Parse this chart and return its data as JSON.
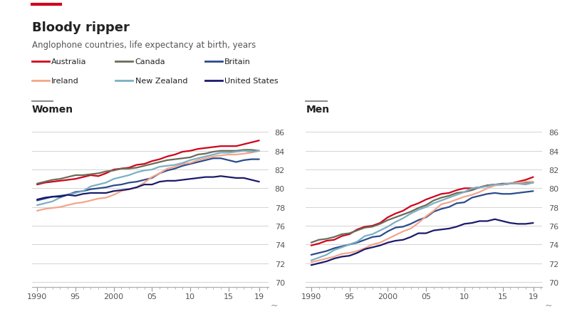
{
  "title": "Bloody ripper",
  "subtitle": "Anglophone countries, life expectancy at birth, years",
  "panel_labels": [
    "Women",
    "Men"
  ],
  "countries": [
    "Australia",
    "Canada",
    "Britain",
    "Ireland",
    "New Zealand",
    "United States"
  ],
  "colors": [
    "#D0021B",
    "#6B6B5A",
    "#2B4B8C",
    "#F4A58A",
    "#7BAFC4",
    "#1A1A6B"
  ],
  "years": [
    1990,
    1991,
    1992,
    1993,
    1994,
    1995,
    1996,
    1997,
    1998,
    1999,
    2000,
    2001,
    2002,
    2003,
    2004,
    2005,
    2006,
    2007,
    2008,
    2009,
    2010,
    2011,
    2012,
    2013,
    2014,
    2015,
    2016,
    2017,
    2018,
    2019
  ],
  "women": {
    "Australia": [
      80.4,
      80.6,
      80.7,
      80.8,
      80.9,
      81.0,
      81.2,
      81.4,
      81.3,
      81.6,
      82.0,
      82.1,
      82.2,
      82.5,
      82.6,
      82.9,
      83.1,
      83.4,
      83.6,
      83.9,
      84.0,
      84.2,
      84.3,
      84.4,
      84.5,
      84.5,
      84.5,
      84.7,
      84.9,
      85.1
    ],
    "Canada": [
      80.5,
      80.7,
      80.9,
      81.0,
      81.2,
      81.4,
      81.4,
      81.5,
      81.6,
      81.8,
      81.9,
      82.1,
      82.1,
      82.2,
      82.4,
      82.6,
      82.8,
      83.0,
      83.1,
      83.2,
      83.3,
      83.6,
      83.7,
      83.9,
      84.0,
      84.0,
      84.0,
      84.1,
      84.1,
      84.0
    ],
    "Britain": [
      78.7,
      78.9,
      79.1,
      79.2,
      79.3,
      79.6,
      79.7,
      79.9,
      80.0,
      80.1,
      80.3,
      80.4,
      80.6,
      80.7,
      80.9,
      81.1,
      81.6,
      81.9,
      82.1,
      82.4,
      82.6,
      82.8,
      83.0,
      83.2,
      83.2,
      83.0,
      82.8,
      83.0,
      83.1,
      83.1
    ],
    "Ireland": [
      77.6,
      77.8,
      77.9,
      78.0,
      78.2,
      78.4,
      78.5,
      78.7,
      78.9,
      79.0,
      79.3,
      79.7,
      79.9,
      80.1,
      80.6,
      81.2,
      81.6,
      82.1,
      82.3,
      82.6,
      82.7,
      83.0,
      83.2,
      83.4,
      83.5,
      83.6,
      83.6,
      83.7,
      83.8,
      84.0
    ],
    "New Zealand": [
      78.2,
      78.4,
      78.6,
      79.0,
      79.3,
      79.5,
      79.7,
      80.2,
      80.4,
      80.6,
      81.0,
      81.2,
      81.4,
      81.7,
      81.9,
      82.0,
      82.3,
      82.4,
      82.5,
      82.7,
      83.0,
      83.2,
      83.4,
      83.6,
      83.8,
      83.8,
      83.9,
      84.0,
      83.9,
      84.0
    ],
    "United States": [
      78.8,
      79.0,
      79.1,
      79.1,
      79.3,
      79.2,
      79.4,
      79.5,
      79.5,
      79.5,
      79.7,
      79.8,
      79.9,
      80.1,
      80.4,
      80.4,
      80.7,
      80.8,
      80.8,
      80.9,
      81.0,
      81.1,
      81.2,
      81.2,
      81.3,
      81.2,
      81.1,
      81.1,
      80.9,
      80.7
    ]
  },
  "men": {
    "Australia": [
      73.9,
      74.1,
      74.4,
      74.5,
      74.9,
      75.1,
      75.6,
      75.9,
      76.0,
      76.3,
      76.9,
      77.3,
      77.6,
      78.1,
      78.4,
      78.8,
      79.1,
      79.4,
      79.5,
      79.8,
      80.0,
      80.0,
      80.1,
      80.3,
      80.4,
      80.4,
      80.5,
      80.7,
      80.9,
      81.2
    ],
    "Canada": [
      74.2,
      74.5,
      74.6,
      74.8,
      75.1,
      75.2,
      75.5,
      75.8,
      75.9,
      76.2,
      76.6,
      76.9,
      77.2,
      77.5,
      77.9,
      78.2,
      78.7,
      79.0,
      79.2,
      79.5,
      79.6,
      79.8,
      80.1,
      80.3,
      80.4,
      80.5,
      80.5,
      80.6,
      80.6,
      80.6
    ],
    "Britain": [
      72.9,
      73.1,
      73.3,
      73.6,
      73.8,
      74.0,
      74.2,
      74.5,
      74.8,
      74.9,
      75.4,
      75.8,
      75.9,
      76.2,
      76.6,
      76.9,
      77.5,
      77.8,
      78.0,
      78.4,
      78.5,
      79.0,
      79.2,
      79.4,
      79.5,
      79.4,
      79.4,
      79.5,
      79.6,
      79.7
    ],
    "Ireland": [
      72.1,
      72.3,
      72.5,
      72.7,
      73.0,
      73.1,
      73.3,
      73.6,
      74.0,
      74.2,
      74.6,
      75.0,
      75.4,
      75.7,
      76.3,
      77.0,
      77.6,
      78.3,
      78.5,
      78.8,
      79.1,
      79.3,
      79.6,
      80.0,
      80.3,
      80.4,
      80.5,
      80.6,
      80.7,
      80.7
    ],
    "New Zealand": [
      72.3,
      72.6,
      72.9,
      73.4,
      73.7,
      74.0,
      74.3,
      74.9,
      75.1,
      75.5,
      75.9,
      76.4,
      76.8,
      77.3,
      77.7,
      78.0,
      78.4,
      78.7,
      79.0,
      79.3,
      79.6,
      80.0,
      80.1,
      80.2,
      80.4,
      80.4,
      80.5,
      80.5,
      80.4,
      80.6
    ],
    "United States": [
      71.8,
      72.0,
      72.2,
      72.5,
      72.7,
      72.8,
      73.1,
      73.5,
      73.7,
      73.9,
      74.2,
      74.4,
      74.5,
      74.8,
      75.2,
      75.2,
      75.5,
      75.6,
      75.7,
      75.9,
      76.2,
      76.3,
      76.5,
      76.5,
      76.7,
      76.5,
      76.3,
      76.2,
      76.2,
      76.3
    ]
  },
  "ylim": [
    69.5,
    87.0
  ],
  "yticks": [
    70,
    72,
    74,
    76,
    78,
    80,
    82,
    84,
    86
  ],
  "xtick_labels": [
    "1990",
    "95",
    "2000",
    "05",
    "10",
    "15",
    "19"
  ],
  "xtick_positions": [
    1990,
    1995,
    2000,
    2005,
    2010,
    2015,
    2019
  ],
  "bg_color": "#FFFFFF",
  "grid_color": "#CCCCCC",
  "accent_red": "#D0021B",
  "text_dark": "#222222",
  "text_mid": "#555555"
}
